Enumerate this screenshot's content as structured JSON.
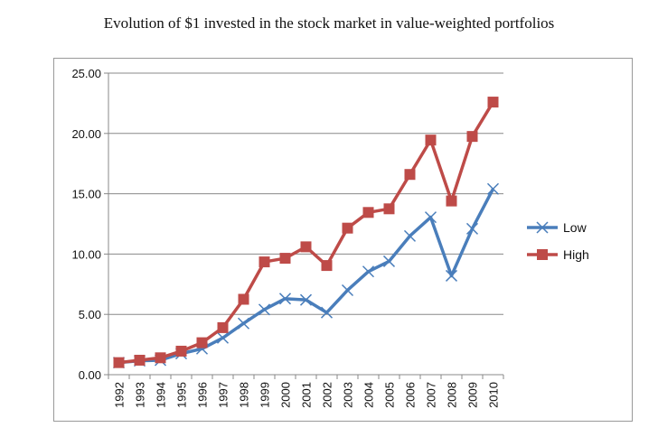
{
  "chart_data": {
    "type": "line",
    "title": "Evolution of $1 invested in the stock market in value-weighted portfolios",
    "xlabel": "",
    "ylabel": "",
    "categories": [
      "1992",
      "1993",
      "1994",
      "1995",
      "1996",
      "1997",
      "1998",
      "1999",
      "2000",
      "2001",
      "2002",
      "2003",
      "2004",
      "2005",
      "2006",
      "2007",
      "2008",
      "2009",
      "2010"
    ],
    "ylim": [
      0,
      25
    ],
    "yticks": [
      "0.00",
      "5.00",
      "10.00",
      "15.00",
      "20.00",
      "25.00"
    ],
    "grid": true,
    "legend": "right",
    "series": [
      {
        "name": "Low",
        "color": "#4a7ebb",
        "marker": "x",
        "values": [
          1.0,
          1.15,
          1.2,
          1.75,
          2.15,
          3.05,
          4.25,
          5.4,
          6.3,
          6.2,
          5.15,
          7.0,
          8.55,
          9.4,
          11.5,
          13.05,
          8.2,
          12.1,
          15.4
        ]
      },
      {
        "name": "High",
        "color": "#be4b48",
        "marker": "square",
        "values": [
          1.0,
          1.2,
          1.4,
          1.95,
          2.65,
          3.9,
          6.25,
          9.35,
          9.65,
          10.6,
          9.05,
          12.15,
          13.45,
          13.75,
          16.6,
          19.45,
          14.4,
          19.75,
          22.6
        ]
      }
    ]
  }
}
